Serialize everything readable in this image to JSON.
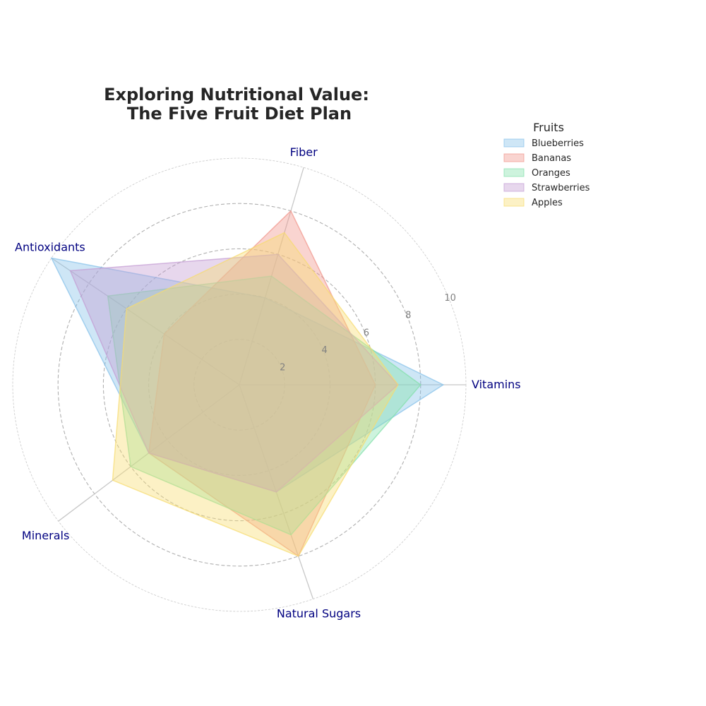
{
  "chart_data": {
    "type": "radar",
    "title_lines": [
      "Exploring Nutritional Value:",
      "The Five Fruit Diet Plan"
    ],
    "categories": [
      "Vitamins",
      "Fiber",
      "Antioxidants",
      "Minerals",
      "Natural Sugars"
    ],
    "rlim": [
      0,
      10
    ],
    "rticks": [
      2,
      4,
      6,
      8,
      10
    ],
    "grid": true,
    "legend": {
      "title": "Fruits",
      "placement": "upper-right-outside"
    },
    "series": [
      {
        "name": "Blueberries",
        "values": [
          9,
          4,
          10,
          5,
          5
        ],
        "color": "#85C1E9"
      },
      {
        "name": "Bananas",
        "values": [
          6,
          8,
          4,
          5,
          8
        ],
        "color": "#F1948A"
      },
      {
        "name": "Oranges",
        "values": [
          8,
          5,
          7,
          6,
          7
        ],
        "color": "#82E0AA"
      },
      {
        "name": "Strawberries",
        "values": [
          7,
          6,
          9,
          5,
          5
        ],
        "color": "#C39BD3"
      },
      {
        "name": "Apples",
        "values": [
          7,
          7,
          6,
          7,
          8
        ],
        "color": "#F7DC6F"
      }
    ]
  }
}
